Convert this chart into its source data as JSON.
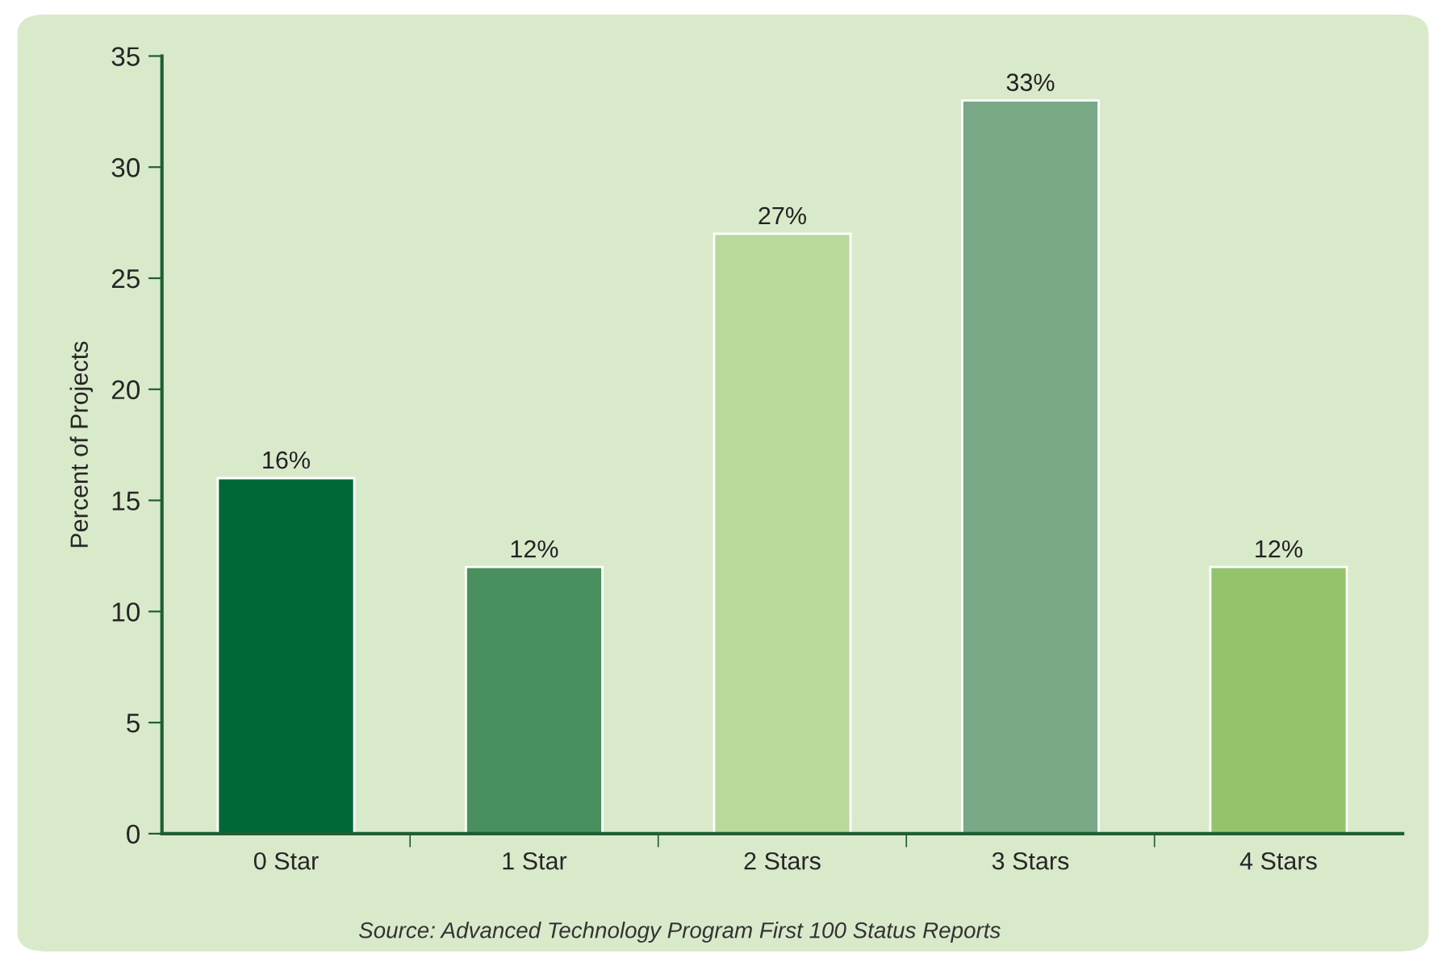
{
  "chart_data": {
    "type": "bar",
    "ylabel": "Percent of Projects",
    "categories": [
      "0 Star",
      "1 Star",
      "2 Stars",
      "3 Stars",
      "4 Stars"
    ],
    "values": [
      16,
      12,
      27,
      33,
      12
    ],
    "colors": [
      "#006837",
      "#4a8f5e",
      "#b9d99b",
      "#78a886",
      "#93c46b"
    ],
    "value_labels": [
      "16%",
      "12%",
      "27%",
      "33%",
      "12%"
    ],
    "ylim": [
      0,
      35
    ],
    "yticks": [
      0,
      5,
      10,
      15,
      20,
      25,
      30,
      35
    ],
    "grid": false,
    "legend": false,
    "annotations": [
      "Source: Advanced Technology Program First 100 Status Reports"
    ]
  }
}
